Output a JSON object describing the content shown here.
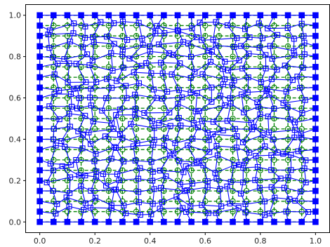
{
  "chart_data": {
    "type": "line",
    "title": "",
    "xlabel": "",
    "ylabel": "",
    "xlim": [
      -0.05,
      1.05
    ],
    "ylim": [
      -0.05,
      1.05
    ],
    "x_ticks": [
      "0.0",
      "0.2",
      "0.4",
      "0.6",
      "0.8",
      "1.0"
    ],
    "y_ticks": [
      "0.0",
      "0.2",
      "0.4",
      "0.6",
      "0.8",
      "1.0"
    ],
    "grid": false,
    "legend": "none",
    "series": [
      {
        "style": "dashed lines, circle markers (filled on boundary, hollow inside)",
        "color": "#008000",
        "marker_fill_boundary": "#006b3c",
        "grid_n": 21,
        "spacing": 0.05,
        "x_range": [
          0.0,
          1.0
        ],
        "y_range": [
          0.0,
          1.0
        ]
      },
      {
        "style": "solid lines, square markers (filled on boundary, hollow inside)",
        "color": "#0000ff",
        "grid_n": 21,
        "spacing": 0.05,
        "boundary": "square from (0,0) to (1,1), same points as the regular grid",
        "interior": "regular grid points randomly perturbed by up to about 0.025 in x and y"
      }
    ]
  }
}
